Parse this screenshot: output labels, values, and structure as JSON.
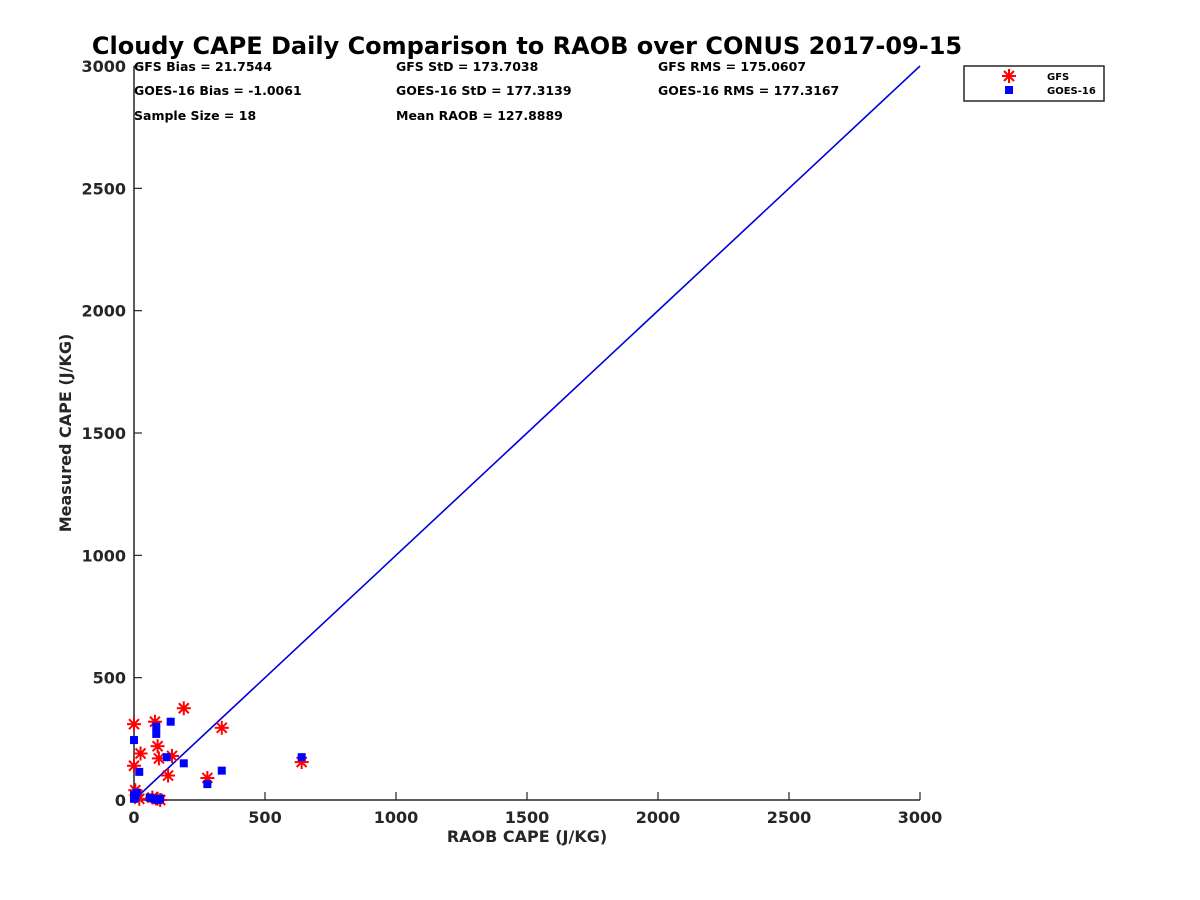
{
  "chart_data": {
    "type": "scatter",
    "title": "Cloudy CAPE Daily Comparison to RAOB over CONUS 2017-09-15",
    "xlabel": "RAOB CAPE (J/KG)",
    "ylabel": "Measured CAPE (J/KG)",
    "xlim": [
      0,
      3000
    ],
    "ylim": [
      0,
      3000
    ],
    "xticks": [
      "0",
      "500",
      "1000",
      "1500",
      "2000",
      "2500",
      "3000"
    ],
    "yticks": [
      "0",
      "500",
      "1000",
      "1500",
      "2000",
      "2500",
      "3000"
    ],
    "grid": false,
    "legend_position": "top-right, outside plot",
    "annotations": [
      "GFS Bias = 21.7544",
      "GFS StD = 173.7038",
      "GFS RMS = 175.0607",
      "GOES-16 Bias = -1.0061",
      "GOES-16 StD = 177.3139",
      "GOES-16 RMS = 177.3167",
      "Sample Size = 18",
      "Mean RAOB = 127.8889"
    ],
    "reference_line": {
      "x": [
        0,
        3000
      ],
      "y": [
        0,
        3000
      ],
      "color": "#0000dd"
    },
    "series": [
      {
        "name": "GFS",
        "marker": "asterisk",
        "color": "#ff0000",
        "points": [
          [
            0,
            310
          ],
          [
            0,
            140
          ],
          [
            5,
            40
          ],
          [
            10,
            20
          ],
          [
            25,
            190
          ],
          [
            80,
            320
          ],
          [
            90,
            220
          ],
          [
            95,
            170
          ],
          [
            70,
            10
          ],
          [
            90,
            5
          ],
          [
            100,
            0
          ],
          [
            130,
            100
          ],
          [
            145,
            180
          ],
          [
            190,
            375
          ],
          [
            280,
            90
          ],
          [
            335,
            295
          ],
          [
            640,
            155
          ],
          [
            20,
            5
          ]
        ]
      },
      {
        "name": "GOES-16",
        "marker": "square",
        "color": "#0000ff",
        "points": [
          [
            0,
            245
          ],
          [
            0,
            20
          ],
          [
            5,
            10
          ],
          [
            20,
            115
          ],
          [
            85,
            300
          ],
          [
            85,
            270
          ],
          [
            140,
            320
          ],
          [
            125,
            175
          ],
          [
            190,
            150
          ],
          [
            280,
            65
          ],
          [
            335,
            120
          ],
          [
            640,
            175
          ],
          [
            75,
            5
          ],
          [
            90,
            0
          ],
          [
            100,
            5
          ],
          [
            10,
            30
          ],
          [
            0,
            5
          ],
          [
            60,
            10
          ]
        ]
      }
    ]
  }
}
